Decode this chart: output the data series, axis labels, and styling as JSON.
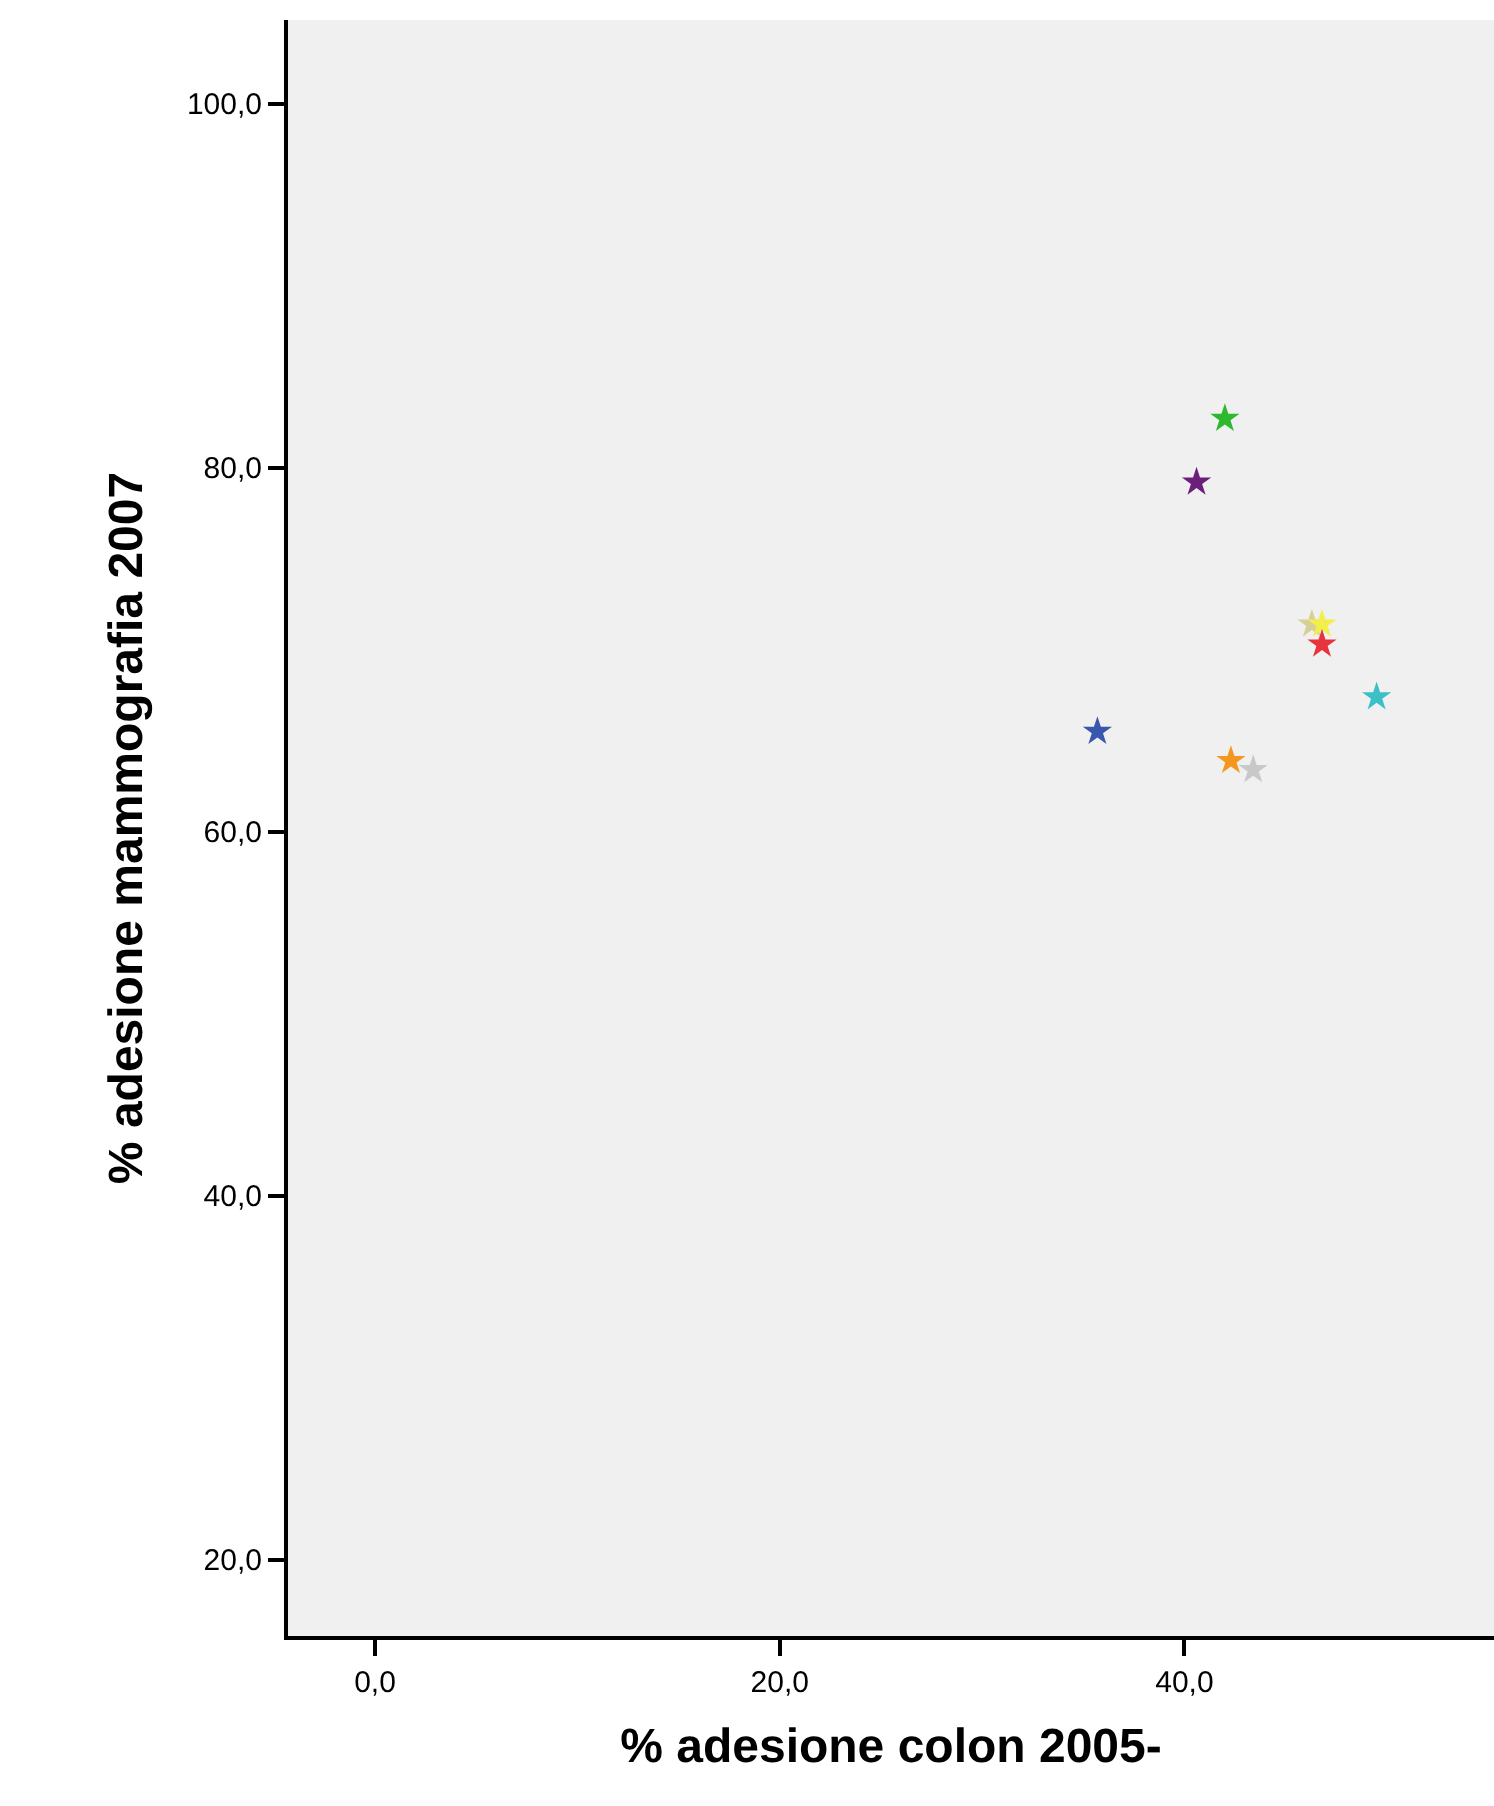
{
  "chart_data": {
    "type": "scatter",
    "xlabel": "% adesione colon 2005-",
    "ylabel": "% adesione mammografia 2007",
    "xlim": [
      -4.3,
      55.3
    ],
    "ylim": [
      15.8,
      104.6
    ],
    "xticks": [
      {
        "value": 0,
        "label": "0,0"
      },
      {
        "value": 20,
        "label": "20,0"
      },
      {
        "value": 40,
        "label": "40,0"
      }
    ],
    "yticks": [
      {
        "value": 20,
        "label": "20,0"
      },
      {
        "value": 40,
        "label": "40,0"
      },
      {
        "value": 60,
        "label": "60,0"
      },
      {
        "value": 80,
        "label": "80,0"
      },
      {
        "value": 100,
        "label": "100,0"
      }
    ],
    "grid": false,
    "marker": "star",
    "x": [
      42.0,
      40.6,
      46.3,
      46.8,
      46.8,
      49.5,
      35.7,
      42.3,
      43.4
    ],
    "values": [
      82.7,
      79.2,
      71.4,
      71.4,
      70.3,
      67.4,
      65.5,
      63.9,
      63.4
    ],
    "colors": [
      "#2eb82e",
      "#6b1f7a",
      "#d6cf9a",
      "#f2ef4a",
      "#e8323c",
      "#3cc0c8",
      "#3a57b0",
      "#f5961e",
      "#c8c8c8"
    ]
  }
}
